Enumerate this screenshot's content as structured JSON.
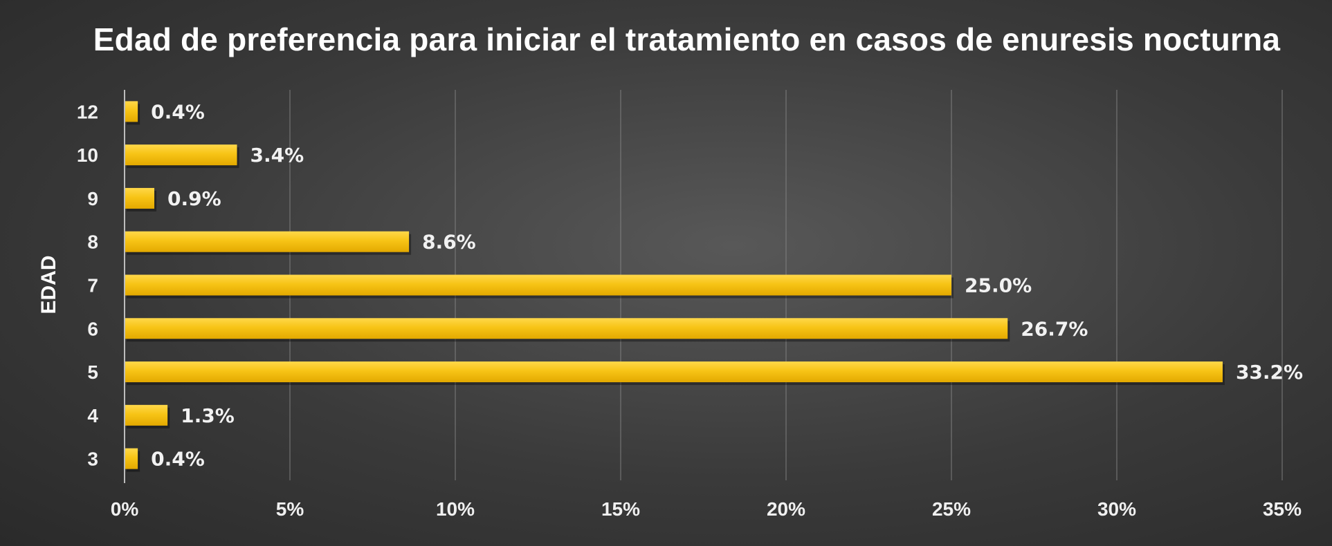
{
  "chart_data": {
    "type": "bar",
    "orientation": "horizontal",
    "title": "Edad de preferencia para iniciar el tratamiento en casos de enuresis nocturna",
    "xlabel": "",
    "ylabel": "EDAD",
    "categories": [
      "3",
      "4",
      "5",
      "6",
      "7",
      "8",
      "9",
      "10",
      "12"
    ],
    "values": [
      0.4,
      1.3,
      33.2,
      26.7,
      25.0,
      8.6,
      0.9,
      3.4,
      0.4
    ],
    "data_labels": [
      "0.4%",
      "1.3%",
      "33.2%",
      "26.7%",
      "25.0%",
      "8.6%",
      "0.9%",
      "3.4%",
      "0.4%"
    ],
    "xlim": [
      0,
      35
    ],
    "xticks": [
      0,
      5,
      10,
      15,
      20,
      25,
      30,
      35
    ],
    "xtick_labels": [
      "0%",
      "5%",
      "10%",
      "15%",
      "20%",
      "25%",
      "30%",
      "35%"
    ],
    "grid": "vertical",
    "legend": "none",
    "colors": {
      "bar": "#f5c014",
      "bar_highlight": "#ffd84a",
      "gridline": "#8a8a8a",
      "axis": "#bdbdbd",
      "text": "#f0f0f0",
      "background": "#3c3c3c"
    }
  }
}
